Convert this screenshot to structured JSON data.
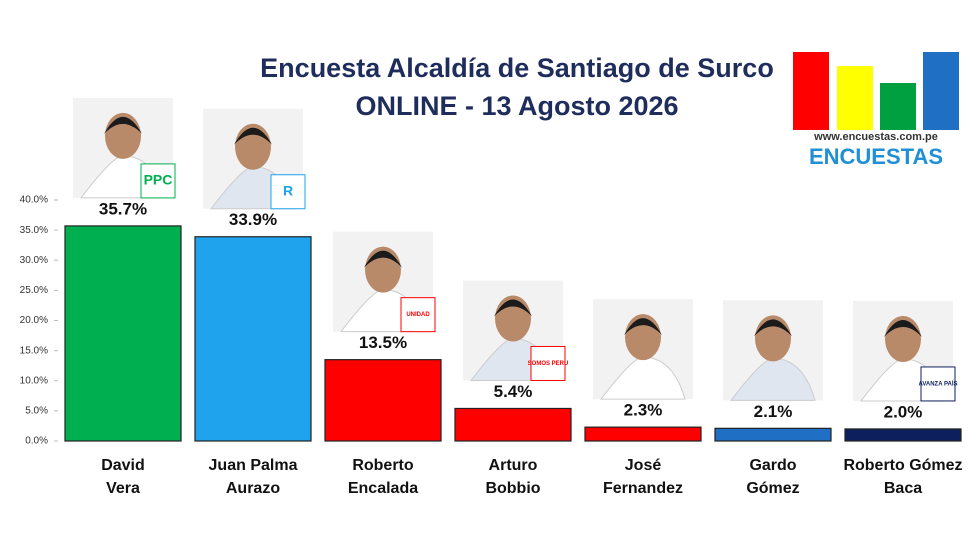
{
  "chart_data": {
    "type": "bar",
    "title": [
      "Encuesta Alcaldía de Santiago de Surco",
      "ONLINE - 13 Agosto 2026"
    ],
    "categories": [
      [
        "David",
        "Vera"
      ],
      [
        "Juan Palma",
        "Aurazo"
      ],
      [
        "Roberto",
        "Encalada"
      ],
      [
        "Arturo",
        "Bobbio"
      ],
      [
        "José",
        "Fernandez"
      ],
      [
        "Gardo",
        "Gómez"
      ],
      [
        "Roberto Gómez",
        "Baca"
      ]
    ],
    "values": [
      35.7,
      33.9,
      13.5,
      5.4,
      2.3,
      2.1,
      2.0
    ],
    "value_labels": [
      "35.7%",
      "33.9%",
      "13.5%",
      "5.4%",
      "2.3%",
      "2.1%",
      "2.0%"
    ],
    "colors": [
      "#00b050",
      "#1ea3ec",
      "#ff0000",
      "#ff0000",
      "#ff0000",
      "#1f6fc5",
      "#0d1f5c"
    ],
    "party_labels": [
      "PPC",
      "R",
      "UNIDAD",
      "SOMOS PERU",
      "",
      "",
      "AVANZA PAÍS"
    ],
    "ylim": [
      0,
      40
    ],
    "yticks": [
      {
        "value": 0,
        "label": "0.0%"
      },
      {
        "value": 5,
        "label": "5.0%"
      },
      {
        "value": 10,
        "label": "10.0%"
      },
      {
        "value": 15,
        "label": "15.0%"
      },
      {
        "value": 20,
        "label": "20.0%"
      },
      {
        "value": 25,
        "label": "25.0%"
      },
      {
        "value": 30,
        "label": "30.0%"
      },
      {
        "value": 35,
        "label": "35.0%"
      },
      {
        "value": 40,
        "label": "40.0%"
      }
    ],
    "logo": {
      "url": "www.encuestas.com.pe",
      "name": "ENCUESTAS"
    }
  }
}
